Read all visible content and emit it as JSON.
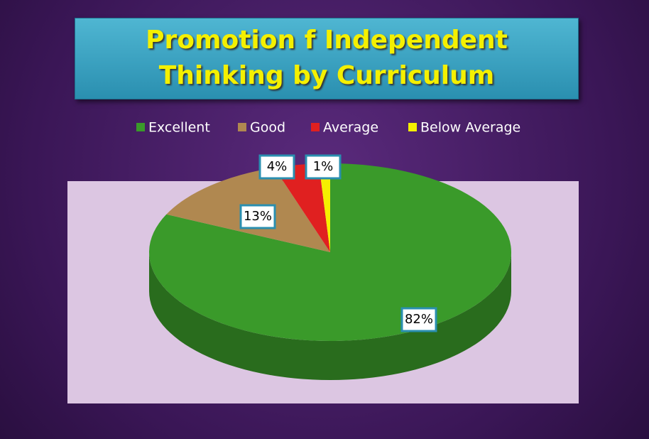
{
  "chart_data": {
    "type": "pie",
    "title": "Promotion f Independent Thinking by Curriculum",
    "categories": [
      "Excellent",
      "Good",
      "Average",
      "Below Average"
    ],
    "values": [
      82,
      13,
      4,
      1
    ],
    "value_labels": [
      "82%",
      "13%",
      "4%",
      "1%"
    ],
    "colors": [
      "#3a9a2a",
      "#b08850",
      "#e02020",
      "#f5f000"
    ],
    "legend": "top"
  }
}
